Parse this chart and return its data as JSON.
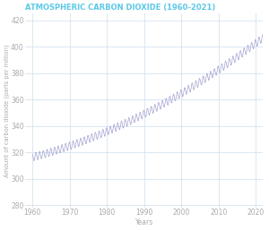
{
  "title": "ATMOSPHERIC CARBON DIOXIDE (1960-2021)",
  "xlabel": "Years",
  "ylabel": "Amount of carbon dioxide (parts per million)",
  "title_color": "#5bc8e8",
  "line_color": "#9999cc",
  "background_color": "#ffffff",
  "grid_color": "#ccddee",
  "xlim": [
    1958,
    2022
  ],
  "ylim": [
    278,
    425
  ],
  "xticks": [
    1960,
    1970,
    1980,
    1990,
    2000,
    2010,
    2020
  ],
  "yticks": [
    280,
    300,
    320,
    340,
    360,
    380,
    400,
    420
  ],
  "label_color": "#aaaaaa",
  "tick_color": "#aaaaaa",
  "dpi": 100,
  "figsize": [
    3.0,
    2.57
  ]
}
